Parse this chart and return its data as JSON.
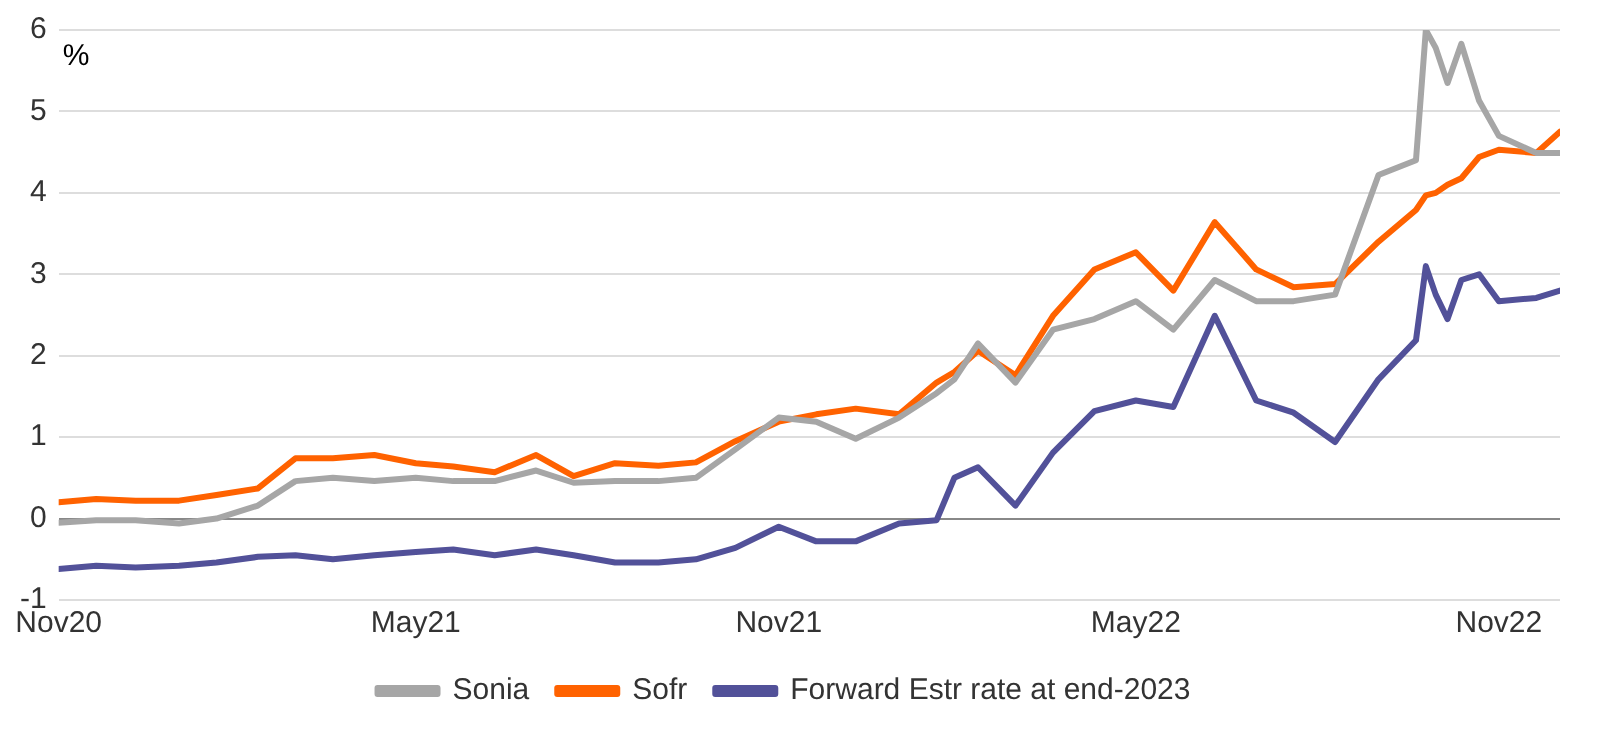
{
  "chart_data": {
    "type": "line",
    "ylabel": "%",
    "grid": "y",
    "legend": "bottom",
    "marker": "none",
    "line_style": "solid",
    "xlim": [
      "2020-11-01",
      "2022-12-02"
    ],
    "xticks": [
      {
        "value": "2020-11-01",
        "label": "Nov20"
      },
      {
        "value": "2021-05-01",
        "label": "May21"
      },
      {
        "value": "2021-11-01",
        "label": "Nov21"
      },
      {
        "value": "2022-05-01",
        "label": "May22"
      },
      {
        "value": "2022-11-01",
        "label": "Nov22"
      }
    ],
    "ylim": [
      -1,
      6
    ],
    "yticks": [
      -1,
      0,
      1,
      2,
      3,
      4,
      5,
      6
    ],
    "x": [
      "2020-11-01",
      "2020-11-20",
      "2020-12-10",
      "2021-01-01",
      "2021-01-20",
      "2021-02-10",
      "2021-03-01",
      "2021-03-20",
      "2021-04-10",
      "2021-05-01",
      "2021-05-20",
      "2021-06-10",
      "2021-07-01",
      "2021-07-20",
      "2021-08-10",
      "2021-09-01",
      "2021-09-20",
      "2021-10-10",
      "2021-11-01",
      "2021-11-20",
      "2021-12-10",
      "2022-01-01",
      "2022-01-20",
      "2022-01-29",
      "2022-02-10",
      "2022-03-01",
      "2022-03-20",
      "2022-04-10",
      "2022-05-01",
      "2022-05-20",
      "2022-06-10",
      "2022-07-01",
      "2022-07-20",
      "2022-08-10",
      "2022-09-01",
      "2022-09-20",
      "2022-09-25",
      "2022-09-30",
      "2022-10-06",
      "2022-10-13",
      "2022-10-22",
      "2022-11-01",
      "2022-11-20",
      "2022-12-02"
    ],
    "series": [
      {
        "name": "Sonia",
        "color": "#a6a6a6",
        "values": [
          -0.05,
          -0.02,
          -0.02,
          -0.06,
          0.0,
          0.16,
          0.46,
          0.5,
          0.46,
          0.5,
          0.46,
          0.46,
          0.59,
          0.44,
          0.46,
          0.46,
          0.5,
          0.85,
          1.24,
          1.19,
          0.98,
          1.24,
          1.54,
          1.71,
          2.15,
          1.67,
          2.32,
          2.45,
          2.67,
          2.32,
          2.93,
          2.67,
          2.67,
          2.75,
          4.22,
          4.4,
          6.0,
          5.78,
          5.35,
          5.83,
          5.13,
          4.7,
          4.49,
          4.49
        ]
      },
      {
        "name": "Sofr",
        "color": "#ff6200",
        "values": [
          0.2,
          0.24,
          0.22,
          0.22,
          0.29,
          0.37,
          0.74,
          0.74,
          0.78,
          0.68,
          0.64,
          0.57,
          0.78,
          0.52,
          0.68,
          0.65,
          0.69,
          0.95,
          1.19,
          1.28,
          1.35,
          1.28,
          1.67,
          1.8,
          2.06,
          1.76,
          2.49,
          3.06,
          3.27,
          2.8,
          3.64,
          3.06,
          2.84,
          2.88,
          3.4,
          3.79,
          3.97,
          4.0,
          4.1,
          4.18,
          4.44,
          4.53,
          4.49,
          4.75
        ]
      },
      {
        "name": "Forward Estr rate at end-2023",
        "color": "#525199",
        "values": [
          -0.62,
          -0.58,
          -0.6,
          -0.58,
          -0.54,
          -0.47,
          -0.45,
          -0.5,
          -0.45,
          -0.41,
          -0.38,
          -0.45,
          -0.38,
          -0.45,
          -0.54,
          -0.54,
          -0.5,
          -0.36,
          -0.1,
          -0.28,
          -0.28,
          -0.06,
          -0.02,
          0.5,
          0.63,
          0.16,
          0.81,
          1.32,
          1.45,
          1.37,
          2.49,
          1.45,
          1.3,
          0.94,
          1.71,
          2.19,
          3.1,
          2.75,
          2.45,
          2.93,
          3.0,
          2.67,
          2.71,
          2.8
        ]
      }
    ]
  }
}
